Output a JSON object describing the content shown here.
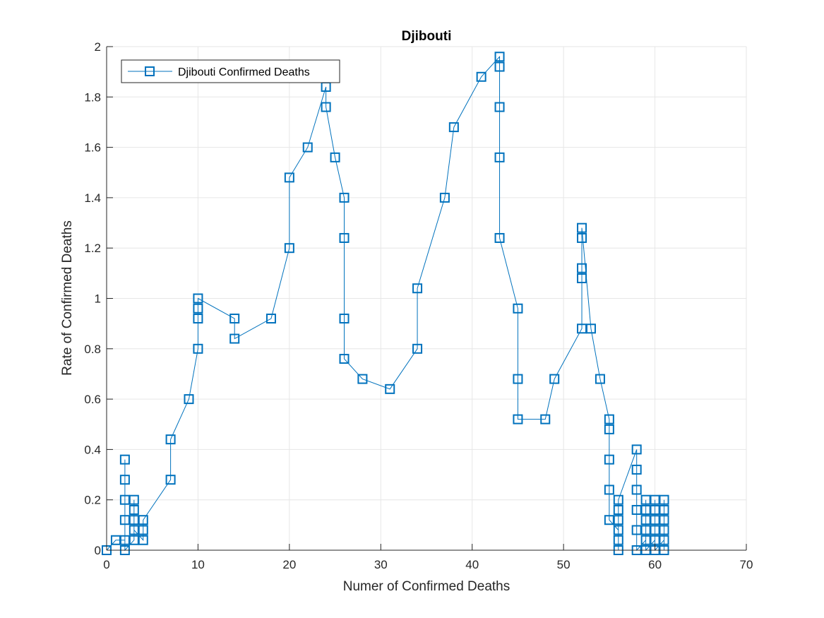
{
  "chart_data": {
    "type": "line",
    "title": "Djibouti",
    "xlabel": "Numer of Confirmed Deaths",
    "ylabel": "Rate of Confirmed Deaths",
    "xlim": [
      0,
      70
    ],
    "ylim": [
      0,
      2
    ],
    "x_ticks": [
      0,
      10,
      20,
      30,
      40,
      50,
      60,
      70
    ],
    "y_ticks": [
      0,
      0.2,
      0.4,
      0.6,
      0.8,
      1,
      1.2,
      1.4,
      1.6,
      1.8,
      2
    ],
    "x_tick_labels": [
      "0",
      "10",
      "20",
      "30",
      "40",
      "50",
      "60",
      "70"
    ],
    "y_tick_labels": [
      "0",
      "0.2",
      "0.4",
      "0.6",
      "0.8",
      "1",
      "1.2",
      "1.4",
      "1.6",
      "1.8",
      "2"
    ],
    "grid": true,
    "legend_position": "top-left",
    "colors": {
      "series": "#0072BD",
      "grid": "#e6e6e6",
      "axis": "#262626"
    },
    "series": [
      {
        "name": "Djibouti Confirmed Deaths",
        "marker": "square",
        "points": [
          [
            0,
            0
          ],
          [
            1,
            0.04
          ],
          [
            2,
            0.04
          ],
          [
            2,
            0.2
          ],
          [
            2,
            0.36
          ],
          [
            2,
            0.28
          ],
          [
            2,
            0.12
          ],
          [
            2,
            0
          ],
          [
            3,
            0.04
          ],
          [
            3,
            0.12
          ],
          [
            3,
            0.2
          ],
          [
            3,
            0.16
          ],
          [
            3,
            0.08
          ],
          [
            4,
            0.04
          ],
          [
            4,
            0.08
          ],
          [
            4,
            0.12
          ],
          [
            7,
            0.28
          ],
          [
            7,
            0.44
          ],
          [
            9,
            0.6
          ],
          [
            10,
            0.8
          ],
          [
            10,
            0.92
          ],
          [
            10,
            0.96
          ],
          [
            10,
            1.0
          ],
          [
            14,
            0.92
          ],
          [
            14,
            0.84
          ],
          [
            18,
            0.92
          ],
          [
            20,
            1.2
          ],
          [
            20,
            1.48
          ],
          [
            22,
            1.6
          ],
          [
            24,
            1.84
          ],
          [
            24,
            1.76
          ],
          [
            25,
            1.56
          ],
          [
            26,
            1.4
          ],
          [
            26,
            1.24
          ],
          [
            26,
            0.92
          ],
          [
            26,
            0.76
          ],
          [
            28,
            0.68
          ],
          [
            31,
            0.64
          ],
          [
            34,
            0.8
          ],
          [
            34,
            1.04
          ],
          [
            37,
            1.4
          ],
          [
            38,
            1.68
          ],
          [
            41,
            1.88
          ],
          [
            43,
            1.96
          ],
          [
            43,
            1.92
          ],
          [
            43,
            1.76
          ],
          [
            43,
            1.56
          ],
          [
            43,
            1.24
          ],
          [
            45,
            0.96
          ],
          [
            45,
            0.68
          ],
          [
            45,
            0.52
          ],
          [
            48,
            0.52
          ],
          [
            49,
            0.68
          ],
          [
            52,
            0.88
          ],
          [
            52,
            1.08
          ],
          [
            52,
            1.12
          ],
          [
            52,
            1.24
          ],
          [
            52,
            1.28
          ],
          [
            53,
            0.88
          ],
          [
            54,
            0.68
          ],
          [
            55,
            0.52
          ],
          [
            55,
            0.48
          ],
          [
            55,
            0.36
          ],
          [
            55,
            0.24
          ],
          [
            55,
            0.12
          ],
          [
            56,
            0.08
          ],
          [
            56,
            0.04
          ],
          [
            56,
            0.0
          ],
          [
            56,
            0.12
          ],
          [
            56,
            0.16
          ],
          [
            56,
            0.2
          ],
          [
            58,
            0.4
          ],
          [
            58,
            0.32
          ],
          [
            58,
            0.24
          ],
          [
            58,
            0.16
          ],
          [
            58,
            0.08
          ],
          [
            58,
            0.0
          ],
          [
            59,
            0.04
          ],
          [
            59,
            0.08
          ],
          [
            59,
            0.12
          ],
          [
            59,
            0.16
          ],
          [
            59,
            0.2
          ],
          [
            59,
            0.0
          ],
          [
            60,
            0.04
          ],
          [
            60,
            0.08
          ],
          [
            60,
            0.12
          ],
          [
            60,
            0.16
          ],
          [
            60,
            0.2
          ],
          [
            60,
            0.0
          ],
          [
            61,
            0.04
          ],
          [
            61,
            0.08
          ],
          [
            61,
            0.12
          ],
          [
            61,
            0.16
          ],
          [
            61,
            0.2
          ],
          [
            61,
            0.0
          ]
        ]
      }
    ]
  }
}
